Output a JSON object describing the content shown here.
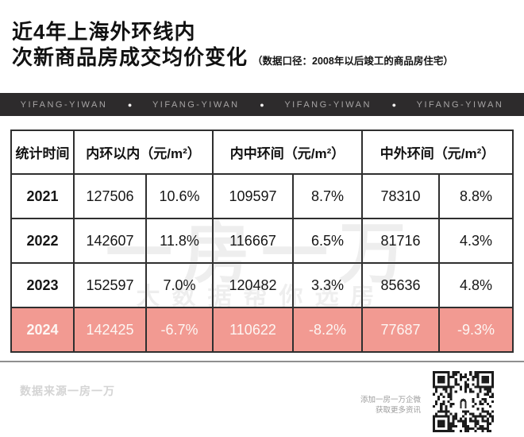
{
  "header": {
    "title_line1": "近4年上海外环线内",
    "title_line2": "次新商品房成交均价变化",
    "subtitle": "（数据口径：2008年以后竣工的商品房住宅）"
  },
  "banner": {
    "brand": "YIFANG-YIWAN",
    "separator": "●"
  },
  "chart_data": {
    "type": "table",
    "title": "近4年上海外环线内次新商品房成交均价变化",
    "note": "数据口径：2008年以后竣工的商品房住宅",
    "header": {
      "time": "统计时间",
      "groups": [
        "内环以内（元/m²）",
        "内中环间（元/m²）",
        "中外环间（元/m²）"
      ]
    },
    "rows": [
      {
        "year": "2021",
        "cells": [
          "127506",
          "10.6%",
          "109597",
          "8.7%",
          "78310",
          "8.8%"
        ],
        "highlight": false
      },
      {
        "year": "2022",
        "cells": [
          "142607",
          "11.8%",
          "116667",
          "6.5%",
          "81716",
          "4.3%"
        ],
        "highlight": false
      },
      {
        "year": "2023",
        "cells": [
          "152597",
          "7.0%",
          "120482",
          "3.3%",
          "85636",
          "4.8%"
        ],
        "highlight": false
      },
      {
        "year": "2024",
        "cells": [
          "142425",
          "-6.7%",
          "110622",
          "-8.2%",
          "77687",
          "-9.3%"
        ],
        "highlight": true
      }
    ]
  },
  "watermark": {
    "line1": "一房一万",
    "line2": "大数据帮你选房"
  },
  "footer": {
    "source": "数据来源一房一万",
    "qr_caption_line1": "添加一房一万企微",
    "qr_caption_line2": "获取更多资讯"
  },
  "colors": {
    "highlight_row": "#f29a92",
    "banner_bg": "#2d2b2c",
    "banner_text": "#a7a5a5"
  }
}
